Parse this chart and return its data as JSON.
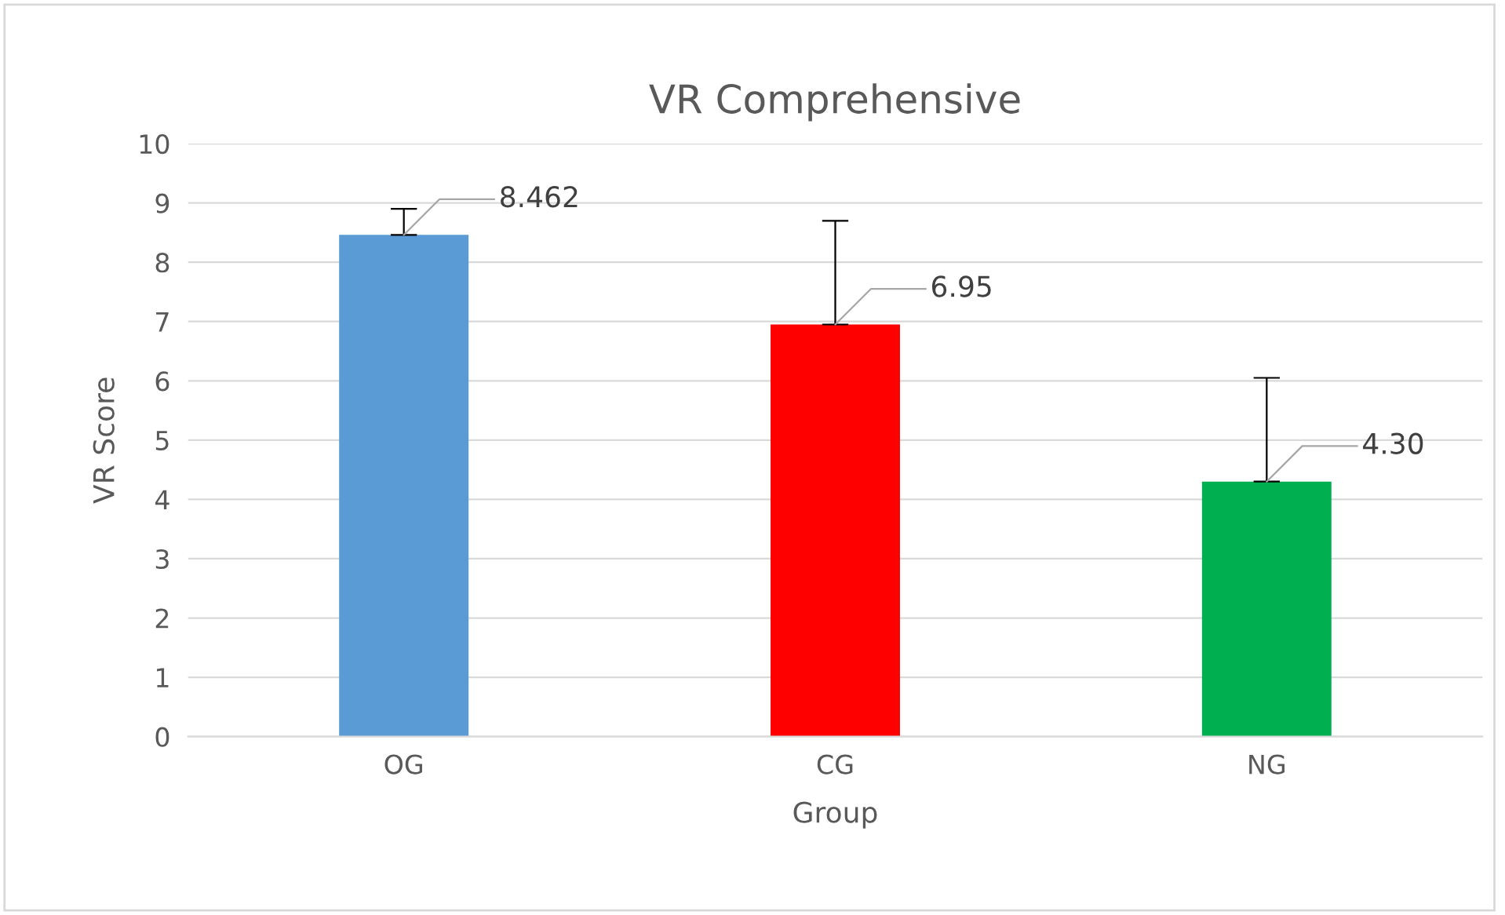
{
  "chart_data": {
    "type": "bar",
    "title": "VR Comprehensive",
    "xlabel": "Group",
    "ylabel": "VR Score",
    "categories": [
      "OG",
      "CG",
      "NG"
    ],
    "values": [
      8.462,
      6.95,
      4.3
    ],
    "colors": [
      "#5b9bd5",
      "#ff0000",
      "#00b050"
    ],
    "value_labels": [
      "8.462",
      "6.95",
      "4.30"
    ],
    "errors": [
      [
        8.462,
        8.9
      ],
      [
        6.95,
        8.7
      ],
      [
        4.3,
        6.05
      ]
    ],
    "ylim": [
      0,
      10
    ],
    "yticks": [
      0,
      1,
      2,
      3,
      4,
      5,
      6,
      7,
      8,
      9,
      10
    ],
    "grid": "y",
    "legend": false
  }
}
